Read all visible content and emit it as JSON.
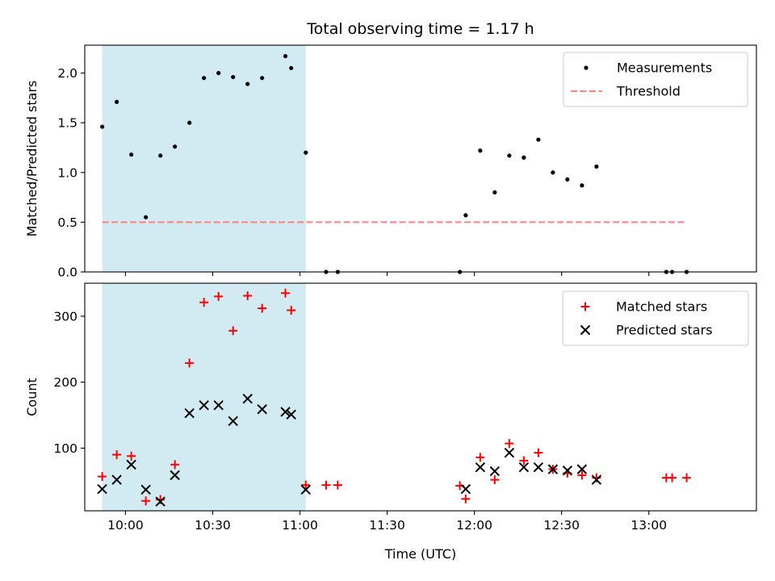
{
  "chart_data": {
    "type": "scatter",
    "title": "Total observing time = 1.17 h",
    "xlabel": "Time (UTC)",
    "x_axis": {
      "ticks": [
        "10:00",
        "10:30",
        "11:00",
        "11:30",
        "12:00",
        "12:30",
        "13:00"
      ],
      "xlim": [
        "09:46",
        "13:37"
      ]
    },
    "highlight_span": {
      "start": "09:52",
      "end": "11:02",
      "color": "#add8e6"
    },
    "panels": [
      {
        "id": "ratio",
        "ylabel": "Matched/Predicted stars",
        "ylim": [
          0,
          2.28
        ],
        "yticks": [
          "0.0",
          "0.5",
          "1.0",
          "1.5",
          "2.0"
        ],
        "legend": {
          "placement": "upper right",
          "entries": [
            "Measurements",
            "Threshold"
          ]
        },
        "series": [
          {
            "name": "Measurements",
            "marker": "dot",
            "color": "#000000",
            "points": [
              {
                "x": "09:52",
                "y": 1.46
              },
              {
                "x": "09:57",
                "y": 1.71
              },
              {
                "x": "10:02",
                "y": 1.18
              },
              {
                "x": "10:07",
                "y": 0.55
              },
              {
                "x": "10:12",
                "y": 1.17
              },
              {
                "x": "10:17",
                "y": 1.26
              },
              {
                "x": "10:22",
                "y": 1.5
              },
              {
                "x": "10:27",
                "y": 1.95
              },
              {
                "x": "10:32",
                "y": 2.0
              },
              {
                "x": "10:37",
                "y": 1.96
              },
              {
                "x": "10:42",
                "y": 1.89
              },
              {
                "x": "10:47",
                "y": 1.95
              },
              {
                "x": "10:55",
                "y": 2.17
              },
              {
                "x": "10:57",
                "y": 2.05
              },
              {
                "x": "11:02",
                "y": 1.2
              },
              {
                "x": "11:09",
                "y": 0.0
              },
              {
                "x": "11:13",
                "y": 0.0
              },
              {
                "x": "11:55",
                "y": 0.0
              },
              {
                "x": "11:57",
                "y": 0.57
              },
              {
                "x": "12:02",
                "y": 1.22
              },
              {
                "x": "12:07",
                "y": 0.8
              },
              {
                "x": "12:12",
                "y": 1.17
              },
              {
                "x": "12:17",
                "y": 1.15
              },
              {
                "x": "12:22",
                "y": 1.33
              },
              {
                "x": "12:27",
                "y": 1.0
              },
              {
                "x": "12:32",
                "y": 0.93
              },
              {
                "x": "12:37",
                "y": 0.87
              },
              {
                "x": "12:42",
                "y": 1.06
              },
              {
                "x": "13:06",
                "y": 0.0
              },
              {
                "x": "13:08",
                "y": 0.0
              },
              {
                "x": "13:13",
                "y": 0.0
              }
            ]
          },
          {
            "name": "Threshold",
            "marker": "dashed-line",
            "color": "#ff7f7f",
            "points": [
              {
                "x": "09:52",
                "y": 0.5
              },
              {
                "x": "13:13",
                "y": 0.5
              }
            ]
          }
        ]
      },
      {
        "id": "count",
        "ylabel": "Count",
        "ylim": [
          5,
          350
        ],
        "yticks": [
          "100",
          "200",
          "300"
        ],
        "legend": {
          "placement": "upper right",
          "entries": [
            "Matched stars",
            "Predicted stars"
          ]
        },
        "series": [
          {
            "name": "Matched stars",
            "marker": "plus",
            "color": "#ff0000",
            "points": [
              {
                "x": "09:52",
                "y": 57
              },
              {
                "x": "09:57",
                "y": 90
              },
              {
                "x": "10:02",
                "y": 88
              },
              {
                "x": "10:07",
                "y": 20
              },
              {
                "x": "10:12",
                "y": 22
              },
              {
                "x": "10:17",
                "y": 75
              },
              {
                "x": "10:22",
                "y": 229
              },
              {
                "x": "10:27",
                "y": 321
              },
              {
                "x": "10:32",
                "y": 330
              },
              {
                "x": "10:37",
                "y": 278
              },
              {
                "x": "10:42",
                "y": 331
              },
              {
                "x": "10:47",
                "y": 312
              },
              {
                "x": "10:55",
                "y": 335
              },
              {
                "x": "10:57",
                "y": 309
              },
              {
                "x": "11:02",
                "y": 44
              },
              {
                "x": "11:09",
                "y": 44
              },
              {
                "x": "11:13",
                "y": 44
              },
              {
                "x": "11:55",
                "y": 43
              },
              {
                "x": "11:57",
                "y": 23
              },
              {
                "x": "12:02",
                "y": 86
              },
              {
                "x": "12:07",
                "y": 52
              },
              {
                "x": "12:12",
                "y": 107
              },
              {
                "x": "12:17",
                "y": 81
              },
              {
                "x": "12:22",
                "y": 93
              },
              {
                "x": "12:27",
                "y": 68
              },
              {
                "x": "12:32",
                "y": 62
              },
              {
                "x": "12:37",
                "y": 59
              },
              {
                "x": "12:42",
                "y": 55
              },
              {
                "x": "13:06",
                "y": 55
              },
              {
                "x": "13:08",
                "y": 55
              },
              {
                "x": "13:13",
                "y": 55
              }
            ]
          },
          {
            "name": "Predicted stars",
            "marker": "x",
            "color": "#000000",
            "points": [
              {
                "x": "09:52",
                "y": 38
              },
              {
                "x": "09:57",
                "y": 52
              },
              {
                "x": "10:02",
                "y": 75
              },
              {
                "x": "10:07",
                "y": 37
              },
              {
                "x": "10:12",
                "y": 19
              },
              {
                "x": "10:17",
                "y": 59
              },
              {
                "x": "10:22",
                "y": 153
              },
              {
                "x": "10:27",
                "y": 165
              },
              {
                "x": "10:32",
                "y": 165
              },
              {
                "x": "10:37",
                "y": 141
              },
              {
                "x": "10:42",
                "y": 175
              },
              {
                "x": "10:47",
                "y": 159
              },
              {
                "x": "10:55",
                "y": 155
              },
              {
                "x": "10:57",
                "y": 151
              },
              {
                "x": "11:02",
                "y": 37
              },
              {
                "x": "11:57",
                "y": 38
              },
              {
                "x": "12:02",
                "y": 71
              },
              {
                "x": "12:07",
                "y": 65
              },
              {
                "x": "12:12",
                "y": 93
              },
              {
                "x": "12:17",
                "y": 71
              },
              {
                "x": "12:22",
                "y": 71
              },
              {
                "x": "12:27",
                "y": 68
              },
              {
                "x": "12:32",
                "y": 66
              },
              {
                "x": "12:37",
                "y": 68
              },
              {
                "x": "12:42",
                "y": 52
              }
            ]
          }
        ]
      }
    ]
  }
}
